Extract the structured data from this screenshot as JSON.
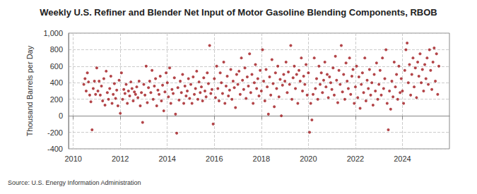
{
  "chart_data": {
    "type": "scatter",
    "title": "Weekly U.S. Refiner and Blender Net Input of Motor Gasoline Blending Components, RBOB",
    "y_label": "Thousand Barrels per Day",
    "source": "Source: U.S. Energy Information Administration",
    "color": "#a0161b",
    "marker": "circle",
    "grid": true,
    "xlim": [
      2009.8,
      2026
    ],
    "xticks": [
      2010,
      2012,
      2014,
      2016,
      2018,
      2020,
      2022,
      2024
    ],
    "ylim": [
      -400,
      1000
    ],
    "yticks": [
      -400,
      -200,
      0,
      200,
      400,
      600,
      800,
      {
        "value": 1000,
        "label": "1,000"
      }
    ],
    "x": [
      2010.45,
      2010.5,
      2010.55,
      2010.6,
      2010.65,
      2010.7,
      2010.75,
      2010.8,
      2010.85,
      2010.9,
      2010.95,
      2011.0,
      2011.05,
      2011.1,
      2011.15,
      2011.2,
      2011.25,
      2011.3,
      2011.35,
      2011.4,
      2011.45,
      2011.5,
      2011.55,
      2011.6,
      2011.65,
      2011.7,
      2011.75,
      2011.8,
      2011.85,
      2011.9,
      2011.95,
      2012.0,
      2012.05,
      2012.1,
      2012.15,
      2012.2,
      2012.25,
      2012.3,
      2012.35,
      2012.4,
      2012.45,
      2012.5,
      2012.55,
      2012.6,
      2012.65,
      2012.7,
      2012.75,
      2012.8,
      2012.85,
      2012.9,
      2012.95,
      2013.0,
      2013.05,
      2013.1,
      2013.15,
      2013.2,
      2013.25,
      2013.3,
      2013.35,
      2013.4,
      2013.45,
      2013.5,
      2013.55,
      2013.6,
      2013.65,
      2013.7,
      2013.75,
      2013.8,
      2013.85,
      2013.9,
      2013.95,
      2014.0,
      2014.05,
      2014.1,
      2014.15,
      2014.2,
      2014.25,
      2014.3,
      2014.35,
      2014.4,
      2014.45,
      2014.5,
      2014.55,
      2014.6,
      2014.65,
      2014.7,
      2014.75,
      2014.8,
      2014.85,
      2014.9,
      2014.95,
      2015.0,
      2015.05,
      2015.1,
      2015.15,
      2015.2,
      2015.25,
      2015.3,
      2015.35,
      2015.4,
      2015.45,
      2015.5,
      2015.55,
      2015.6,
      2015.65,
      2015.7,
      2015.75,
      2015.8,
      2015.85,
      2015.9,
      2015.95,
      2016.0,
      2016.05,
      2016.1,
      2016.15,
      2016.2,
      2016.25,
      2016.3,
      2016.35,
      2016.4,
      2016.45,
      2016.5,
      2016.55,
      2016.6,
      2016.65,
      2016.7,
      2016.75,
      2016.8,
      2016.85,
      2016.9,
      2016.95,
      2017.0,
      2017.05,
      2017.1,
      2017.15,
      2017.2,
      2017.25,
      2017.3,
      2017.35,
      2017.4,
      2017.45,
      2017.5,
      2017.55,
      2017.6,
      2017.65,
      2017.7,
      2017.75,
      2017.8,
      2017.85,
      2017.9,
      2017.95,
      2018.0,
      2018.05,
      2018.1,
      2018.15,
      2018.2,
      2018.25,
      2018.3,
      2018.35,
      2018.4,
      2018.45,
      2018.5,
      2018.55,
      2018.6,
      2018.65,
      2018.7,
      2018.75,
      2018.8,
      2018.85,
      2018.9,
      2018.95,
      2019.0,
      2019.05,
      2019.1,
      2019.15,
      2019.2,
      2019.25,
      2019.3,
      2019.35,
      2019.4,
      2019.45,
      2019.5,
      2019.55,
      2019.6,
      2019.65,
      2019.7,
      2019.75,
      2019.8,
      2019.85,
      2019.9,
      2019.95,
      2020.0,
      2020.05,
      2020.1,
      2020.15,
      2020.2,
      2020.25,
      2020.3,
      2020.35,
      2020.4,
      2020.45,
      2020.5,
      2020.55,
      2020.6,
      2020.65,
      2020.7,
      2020.75,
      2020.8,
      2020.85,
      2020.9,
      2020.95,
      2021.0,
      2021.05,
      2021.1,
      2021.15,
      2021.2,
      2021.25,
      2021.3,
      2021.35,
      2021.4,
      2021.45,
      2021.5,
      2021.55,
      2021.6,
      2021.65,
      2021.7,
      2021.75,
      2021.8,
      2021.85,
      2021.9,
      2021.95,
      2022.0,
      2022.05,
      2022.1,
      2022.15,
      2022.2,
      2022.25,
      2022.3,
      2022.35,
      2022.4,
      2022.45,
      2022.5,
      2022.55,
      2022.6,
      2022.65,
      2022.7,
      2022.75,
      2022.8,
      2022.85,
      2022.9,
      2022.95,
      2023.0,
      2023.05,
      2023.1,
      2023.15,
      2023.2,
      2023.25,
      2023.3,
      2023.35,
      2023.4,
      2023.45,
      2023.5,
      2023.55,
      2023.6,
      2023.65,
      2023.7,
      2023.75,
      2023.8,
      2023.85,
      2023.9,
      2023.95,
      2024.0,
      2024.05,
      2024.1,
      2024.15,
      2024.2,
      2024.25,
      2024.3,
      2024.35,
      2024.4,
      2024.45,
      2024.5,
      2024.55,
      2024.6,
      2024.65,
      2024.7,
      2024.75,
      2024.8,
      2024.85,
      2024.9,
      2024.95,
      2025.0,
      2025.05,
      2025.1,
      2025.15,
      2025.2,
      2025.25,
      2025.3,
      2025.35,
      2025.4,
      2025.45,
      2025.5,
      2025.55
    ],
    "values": [
      380,
      450,
      300,
      520,
      410,
      250,
      170,
      -170,
      330,
      420,
      260,
      580,
      300,
      420,
      250,
      360,
      180,
      450,
      130,
      540,
      280,
      200,
      330,
      480,
      150,
      260,
      390,
      210,
      310,
      120,
      430,
      30,
      520,
      200,
      320,
      270,
      380,
      150,
      300,
      240,
      410,
      330,
      180,
      290,
      260,
      350,
      220,
      420,
      120,
      280,
      -80,
      380,
      250,
      600,
      160,
      340,
      420,
      280,
      550,
      200,
      360,
      450,
      120,
      310,
      260,
      480,
      180,
      370,
      60,
      290,
      520,
      400,
      230,
      580,
      150,
      320,
      270,
      460,
      20,
      -210,
      340,
      190,
      420,
      280,
      500,
      150,
      360,
      240,
      300,
      450,
      210,
      380,
      150,
      470,
      260,
      330,
      540,
      200,
      410,
      280,
      350,
      180,
      460,
      300,
      230,
      520,
      390,
      850,
      270,
      320,
      -100,
      450,
      220,
      600,
      330,
      180,
      520,
      400,
      270,
      650,
      150,
      360,
      480,
      240,
      310,
      560,
      200,
      420,
      340,
      100,
      500,
      380,
      540,
      260,
      700,
      430,
      320,
      580,
      210,
      470,
      360,
      750,
      280,
      500,
      150,
      400,
      620,
      330,
      450,
      240,
      550,
      300,
      800,
      420,
      180,
      560,
      350,
      20,
      470,
      250,
      680,
      390,
      110,
      520,
      330,
      600,
      230,
      440,
      0,
      370,
      500,
      420,
      650,
      280,
      530,
      380,
      850,
      200,
      460,
      600,
      330,
      500,
      150,
      550,
      420,
      700,
      300,
      480,
      380,
      620,
      250,
      520,
      -200,
      150,
      -50,
      260,
      700,
      330,
      450,
      200,
      600,
      380,
      520,
      280,
      430,
      650,
      350,
      500,
      220,
      470,
      400,
      320,
      580,
      250,
      720,
      430,
      160,
      550,
      380,
      850,
      290,
      500,
      200,
      640,
      420,
      330,
      700,
      260,
      480,
      560,
      150,
      350,
      600,
      220,
      470,
      90,
      380,
      520,
      280,
      700,
      180,
      430,
      330,
      560,
      250,
      400,
      130,
      500,
      300,
      640,
      200,
      380,
      550,
      250,
      700,
      330,
      450,
      800,
      150,
      -170,
      300,
      80,
      420,
      230,
      650,
      350,
      500,
      200,
      600,
      280,
      450,
      300,
      150,
      550,
      800,
      880,
      400,
      620,
      250,
      500,
      700,
      350,
      580,
      220,
      650,
      480,
      750,
      400,
      560,
      300,
      620,
      450,
      700,
      380,
      800,
      550,
      320,
      650,
      820,
      420,
      750,
      260,
      600
    ]
  }
}
